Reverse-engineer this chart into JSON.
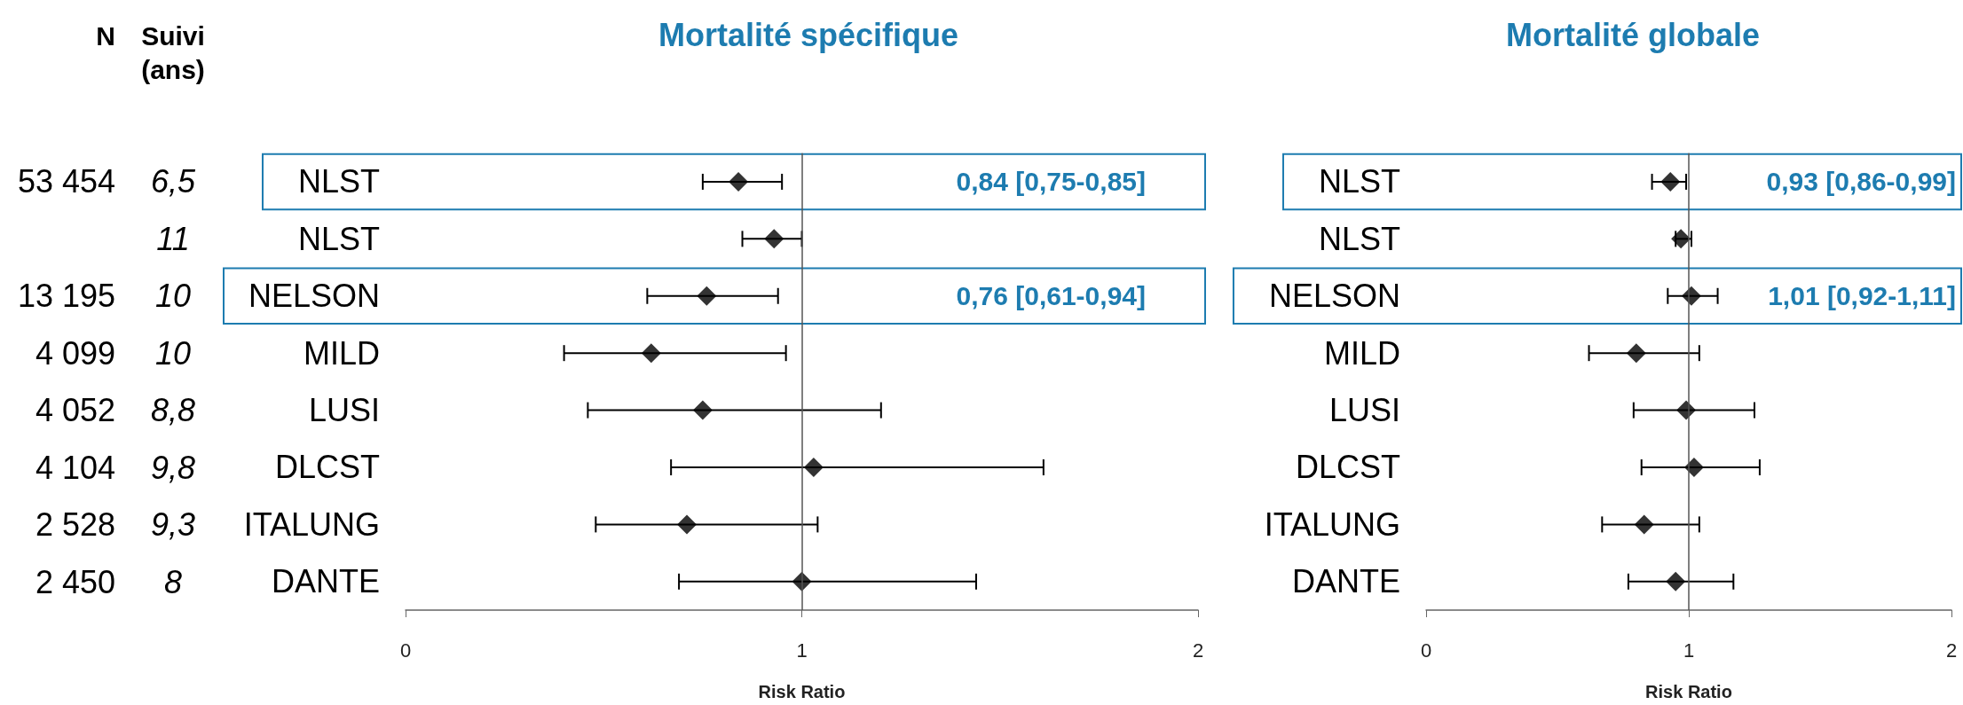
{
  "chart_data": [
    {
      "type": "other",
      "categories": [
        "N",
        "Suivi (ans)"
      ],
      "cell_labels": [
        [
          "53 454",
          "6,5"
        ],
        [
          null,
          "11"
        ],
        [
          "13 195",
          "10"
        ],
        [
          "4 099",
          "10"
        ],
        [
          "4 052",
          "8,8"
        ],
        [
          "4 104",
          "9,8"
        ],
        [
          "2 528",
          "9,3"
        ],
        [
          "2 450",
          "8"
        ]
      ]
    },
    {
      "type": "scatter",
      "orientation": "horizontal",
      "title": "Mortalité spécifique",
      "xlabel": "Risk Ratio",
      "categories": [
        "NLST",
        "NLST",
        "NELSON",
        "MILD",
        "LUSI",
        "DLCST",
        "ITALUNG",
        "DANTE"
      ],
      "color": "#000000",
      "marker": "diamond",
      "values": [
        0.84,
        0.93,
        0.76,
        0.62,
        0.75,
        1.03,
        0.71,
        1.0
      ],
      "errors": [
        [
          0.75,
          0.95
        ],
        [
          0.85,
          1.0
        ],
        [
          0.61,
          0.94
        ],
        [
          0.4,
          0.96
        ],
        [
          0.46,
          1.2
        ],
        [
          0.67,
          1.61
        ],
        [
          0.48,
          1.04
        ],
        [
          0.69,
          1.44
        ]
      ],
      "xlim": [
        0,
        2
      ],
      "xticks": [
        0,
        1,
        2
      ],
      "ref_lines": [
        {
          "axis": "x",
          "value": 1,
          "color": "#555555"
        }
      ],
      "annotations": [
        "0,84 [0,75-0,85]",
        "0,76 [0,61-0,94]"
      ]
    },
    {
      "type": "scatter",
      "orientation": "horizontal",
      "title": "Mortalité globale",
      "xlabel": "Risk Ratio",
      "categories": [
        "NLST",
        "NLST",
        "NELSON",
        "MILD",
        "LUSI",
        "DLCST",
        "ITALUNG",
        "DANTE"
      ],
      "color": "#000000",
      "marker": "diamond",
      "values": [
        0.93,
        0.97,
        1.01,
        0.8,
        0.99,
        1.02,
        0.83,
        0.95
      ],
      "errors": [
        [
          0.86,
          0.99
        ],
        [
          0.95,
          1.01
        ],
        [
          0.92,
          1.11
        ],
        [
          0.62,
          1.04
        ],
        [
          0.79,
          1.25
        ],
        [
          0.82,
          1.27
        ],
        [
          0.67,
          1.04
        ],
        [
          0.77,
          1.17
        ]
      ],
      "xlim": [
        0,
        2
      ],
      "xticks": [
        0,
        1,
        2
      ],
      "ref_lines": [
        {
          "axis": "x",
          "value": 1,
          "color": "#555555"
        }
      ],
      "annotations": [
        "0,93 [0,86-0,99]",
        "1,01 [0,92-1,11]"
      ]
    }
  ]
}
